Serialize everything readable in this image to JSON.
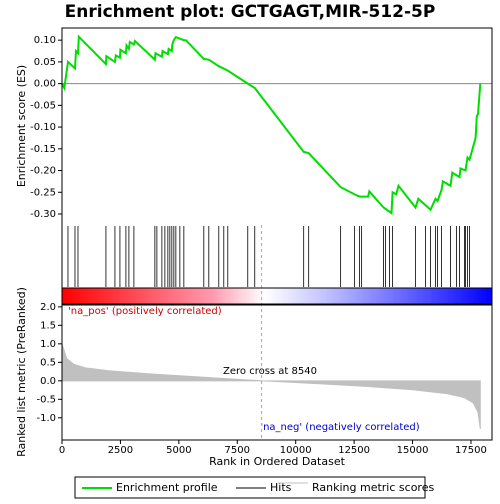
{
  "chart_data": [
    {
      "type": "line",
      "title": "Enrichment plot: GCTGAGT,MIR-512-5P",
      "ylabel": "Enrichment score (ES)",
      "series": [
        {
          "name": "Enrichment profile",
          "color": "#00dd00",
          "x": [
            0,
            100,
            256,
            556,
            600,
            684,
            720,
            1880,
            1900,
            2265,
            2300,
            2479,
            2500,
            2735,
            2760,
            2863,
            2900,
            3077,
            3120,
            3974,
            4000,
            4274,
            4300,
            4530,
            4560,
            4700,
            4720,
            4786,
            4872,
            5214,
            5300,
            6068,
            6282,
            6709,
            7094,
            7949,
            8248,
            10342,
            10556,
            11923,
            12521,
            12735,
            13100,
            13150,
            13761,
            14100,
            14145,
            14300,
            14400,
            15128,
            15250,
            15769,
            15983,
            16068,
            16239,
            16300,
            16624,
            16700,
            17008,
            17050,
            17265,
            17350,
            17436,
            17700,
            17750,
            17800,
            17900
          ],
          "values": [
            0,
            -0.01,
            0.05,
            0.035,
            0.075,
            0.07,
            0.108,
            0.045,
            0.063,
            0.05,
            0.065,
            0.06,
            0.078,
            0.07,
            0.088,
            0.08,
            0.096,
            0.09,
            0.098,
            0.055,
            0.07,
            0.062,
            0.075,
            0.068,
            0.08,
            0.075,
            0.09,
            0.1,
            0.107,
            0.1,
            0.1,
            0.057,
            0.055,
            0.04,
            0.03,
            0.0,
            -0.01,
            -0.157,
            -0.16,
            -0.238,
            -0.255,
            -0.26,
            -0.26,
            -0.248,
            -0.285,
            -0.298,
            -0.25,
            -0.255,
            -0.235,
            -0.285,
            -0.265,
            -0.29,
            -0.265,
            -0.27,
            -0.245,
            -0.225,
            -0.235,
            -0.205,
            -0.215,
            -0.195,
            -0.2,
            -0.17,
            -0.175,
            -0.125,
            -0.075,
            -0.07,
            0.0
          ]
        }
      ],
      "xlim": [
        0,
        18400
      ],
      "ylim": [
        -0.323,
        0.128
      ],
      "yticks": [
        {
          "value": 0.1,
          "label": "0.10"
        },
        {
          "value": 0.05,
          "label": "0.05"
        },
        {
          "value": 0,
          "label": "0.00"
        },
        {
          "value": -0.05,
          "label": "-0.05"
        },
        {
          "value": -0.1,
          "label": "-0.10"
        },
        {
          "value": -0.15,
          "label": "-0.15"
        },
        {
          "value": -0.2,
          "label": "-0.20"
        },
        {
          "value": -0.25,
          "label": "-0.25"
        },
        {
          "value": -0.3,
          "label": "-0.30"
        }
      ]
    },
    {
      "type": "rug",
      "name": "Hits",
      "color": "#000000",
      "values": [
        256,
        556,
        684,
        1880,
        2265,
        2479,
        2735,
        2863,
        3077,
        3974,
        4060,
        4274,
        4402,
        4530,
        4615,
        4700,
        4786,
        4872,
        5043,
        5214,
        6068,
        6282,
        6709,
        6923,
        7094,
        7949,
        8248,
        10342,
        10556,
        11923,
        12521,
        12735,
        12821,
        13761,
        13846,
        14017,
        14145,
        15128,
        15556,
        15769,
        15983,
        16068,
        16239,
        16624,
        16880,
        17008,
        17222,
        17265,
        17350,
        17436
      ]
    },
    {
      "type": "area",
      "name": "Ranking metric scores",
      "color": "#c0c0c0",
      "ylabel": "Ranked list metric (PreRanked)",
      "xlabel": "Rank in Ordered Dataset",
      "x": [
        0,
        200,
        500,
        1000,
        2000,
        4000,
        6000,
        8540,
        11000,
        13000,
        15000,
        16500,
        17200,
        17600,
        17800,
        17900
      ],
      "values": [
        1.0,
        0.6,
        0.45,
        0.35,
        0.27,
        0.18,
        0.1,
        0,
        -0.08,
        -0.15,
        -0.24,
        -0.35,
        -0.45,
        -0.6,
        -0.85,
        -1.3
      ],
      "zero_cross": 8540,
      "annotations": [
        "'na_pos' (positively correlated)",
        "Zero cross at 8540",
        "'na_neg' (negatively correlated)"
      ],
      "xlim": [
        0,
        18400
      ],
      "ylim": [
        -1.6,
        2.05
      ],
      "xticks": [
        0,
        2500,
        5000,
        7500,
        10000,
        12500,
        15000,
        17500
      ],
      "yticks": [
        {
          "value": 2,
          "label": "2.0"
        },
        {
          "value": 1.5,
          "label": "1.5"
        },
        {
          "value": 1,
          "label": "1.0"
        },
        {
          "value": 0.5,
          "label": "0.5"
        },
        {
          "value": 0,
          "label": "0.0"
        },
        {
          "value": -0.5,
          "label": "-0.5"
        },
        {
          "value": -1,
          "label": "-1.0"
        }
      ]
    }
  ]
}
